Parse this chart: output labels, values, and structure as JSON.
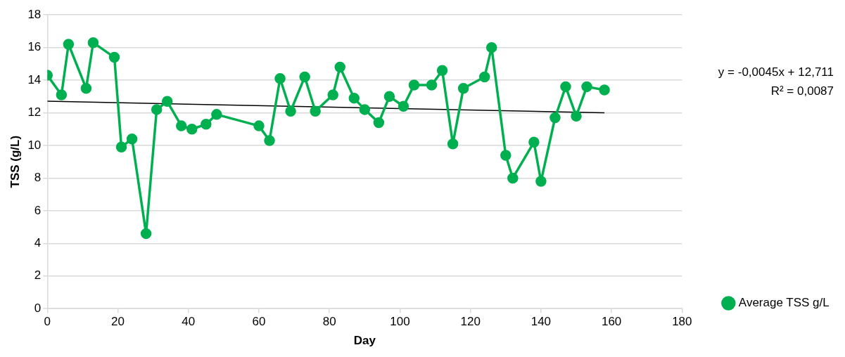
{
  "chart_data": {
    "type": "line",
    "xlabel": "Day",
    "ylabel": "TSS (g/L)",
    "xlim": [
      0,
      180
    ],
    "xticks": [
      0,
      20,
      40,
      60,
      80,
      100,
      120,
      140,
      160,
      180
    ],
    "ylim": [
      0,
      18
    ],
    "yticks": [
      0,
      2,
      4,
      6,
      8,
      10,
      12,
      14,
      16,
      18
    ],
    "grid": "y",
    "legend": "right",
    "marker": "circle",
    "line_style": "solid",
    "annotations": [
      "y = -0,0045x + 12,711",
      "R² = 0,0087"
    ],
    "series": [
      {
        "name": "Average TSS g/L",
        "color": "#00b050",
        "x": [
          0,
          4,
          6,
          11,
          13,
          19,
          21,
          24,
          28,
          31,
          34,
          38,
          41,
          45,
          48,
          60,
          63,
          66,
          69,
          73,
          76,
          81,
          83,
          87,
          90,
          94,
          97,
          101,
          104,
          109,
          112,
          115,
          118,
          124,
          126,
          130,
          132,
          138,
          140,
          144,
          147,
          150,
          153,
          158
        ],
        "values": [
          14.3,
          13.1,
          16.2,
          13.5,
          16.3,
          15.4,
          9.9,
          10.4,
          4.6,
          12.2,
          12.7,
          11.2,
          11.0,
          11.3,
          11.9,
          11.2,
          10.3,
          14.1,
          12.1,
          14.2,
          12.1,
          13.1,
          14.8,
          12.9,
          12.2,
          11.4,
          13.0,
          12.4,
          13.7,
          13.7,
          14.6,
          10.1,
          13.5,
          14.2,
          16.0,
          9.4,
          8.0,
          10.2,
          7.8,
          11.7,
          13.6,
          11.8,
          13.6,
          13.4
        ]
      },
      {
        "type": "line",
        "color": "#000000",
        "marker": "none",
        "x": [
          0,
          158
        ],
        "values": [
          12.71,
          12.0
        ]
      }
    ]
  }
}
